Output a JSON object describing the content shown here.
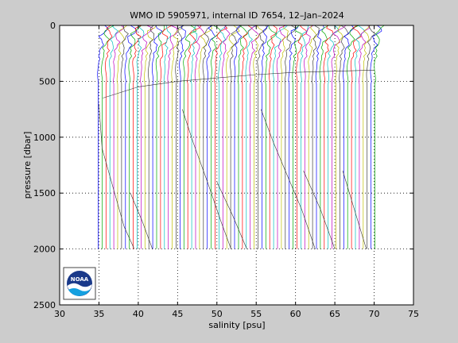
{
  "chart_data": {
    "type": "line",
    "title": "WMO ID 5905971, internal ID 7654, 12–Jan–2024",
    "xlabel": "salinity [psu]",
    "ylabel": "pressure [dbar]",
    "xlim": [
      30,
      75
    ],
    "ylim": [
      0,
      2500
    ],
    "y_reversed": true,
    "grid": true,
    "grid_style": "dotted",
    "x_ticks": [
      30,
      35,
      40,
      45,
      50,
      55,
      60,
      65,
      70,
      75
    ],
    "y_ticks": [
      0,
      500,
      1000,
      1500,
      2000,
      2500
    ],
    "x_tick_labels": [
      "30",
      "35",
      "40",
      "45",
      "50",
      "55",
      "60",
      "65",
      "70",
      "75"
    ],
    "y_tick_labels": [
      "0",
      "500",
      "1000",
      "1500",
      "2000",
      "2500"
    ],
    "waterfall": {
      "profile_count": 72,
      "first_offset_psu": 34.9,
      "last_offset_psu": 70.1,
      "deep_pressure_dbar": 2000,
      "surface_range_psu": [
        35.0,
        36.2
      ]
    },
    "series_colors": [
      "#0000ff",
      "#00aa00",
      "#ff0000",
      "#00bfbf",
      "#bf00bf",
      "#bfbf00",
      "#404040"
    ]
  },
  "logo": {
    "name": "noaa-logo",
    "text": "NOAA"
  },
  "colors": {
    "figure_bg": "#cccccc",
    "axes_bg": "#ffffff",
    "axis": "#000000"
  }
}
